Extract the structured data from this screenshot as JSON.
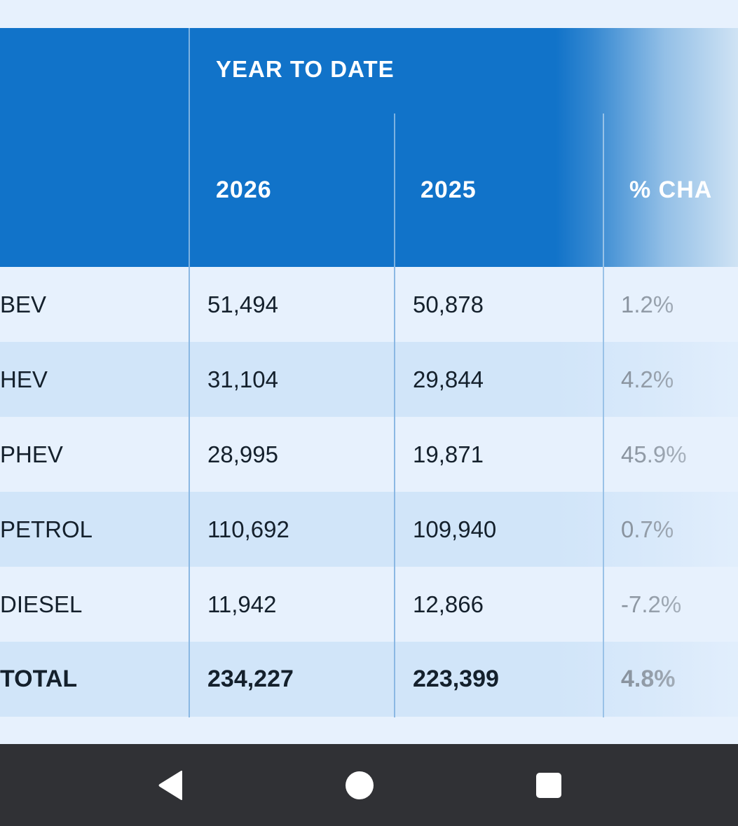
{
  "table": {
    "group_header": "YEAR TO DATE",
    "columns": [
      "2026",
      "2025",
      "% CHA"
    ],
    "rows": [
      {
        "label": "BEV",
        "y2026": "51,494",
        "y2025": "50,878",
        "change": "1.2%"
      },
      {
        "label": "HEV",
        "y2026": "31,104",
        "y2025": "29,844",
        "change": "4.2%"
      },
      {
        "label": "PHEV",
        "y2026": "28,995",
        "y2025": "19,871",
        "change": "45.9%"
      },
      {
        "label": "PETROL",
        "y2026": "110,692",
        "y2025": "109,940",
        "change": "0.7%"
      },
      {
        "label": "DIESEL",
        "y2026": "11,942",
        "y2025": "12,866",
        "change": "-7.2%"
      }
    ],
    "total": {
      "label": "TOTAL",
      "y2026": "234,227",
      "y2025": "223,399",
      "change": "4.8%"
    }
  },
  "navbar": {
    "icons": [
      "back-icon",
      "home-icon",
      "recents-icon"
    ]
  },
  "colors": {
    "header_bg": "#1173c9",
    "row_light": "#e7f1fd",
    "row_dark": "#d1e5f9",
    "navbar_bg": "#303135"
  }
}
